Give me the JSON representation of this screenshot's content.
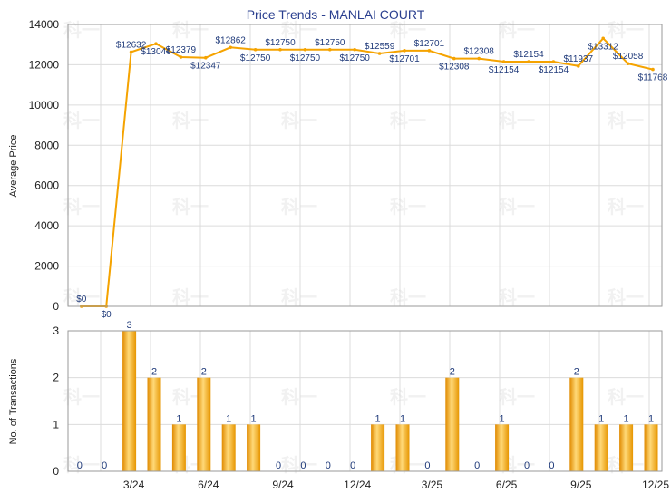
{
  "chart_data": {
    "type": "line",
    "title": "Price Trends - MANLAI COURT",
    "watermark_text": "科一",
    "colors": {
      "line": "#f5a300",
      "bar": "#f0a500",
      "grid": "#dcdcdc",
      "title": "#2a3f8f",
      "labels": "#1f3a7a"
    },
    "x_labels": [
      "3/24",
      "6/24",
      "9/24",
      "12/24",
      "3/25",
      "6/25",
      "9/25",
      "12/25"
    ],
    "x_label_indices": [
      2,
      5,
      8,
      11,
      14,
      17,
      20,
      23
    ],
    "months": 24,
    "price": {
      "type": "line",
      "ylabel": "Average Price",
      "ylim": [
        0,
        14000
      ],
      "yticks": [
        0,
        2000,
        4000,
        6000,
        8000,
        10000,
        12000,
        14000
      ],
      "values": [
        0,
        0,
        12632,
        13046,
        12379,
        12347,
        12862,
        12750,
        12750,
        12750,
        12750,
        12750,
        12559,
        12701,
        12701,
        12308,
        12308,
        12154,
        12154,
        12154,
        11937,
        13312,
        12058,
        11768
      ],
      "labels": [
        "$0",
        "$0",
        "$12632",
        "$13046",
        "$12379",
        "$12347",
        "$12862",
        "$12750",
        "$12750",
        "$12750",
        "$12750",
        "$12750",
        "$12559",
        "$12701",
        "$12701",
        "$12308",
        "$12308",
        "$12154",
        "$12154",
        "$12154",
        "$11937",
        "$13312",
        "$12058",
        "$11768"
      ]
    },
    "transactions": {
      "type": "bar",
      "ylabel": "No. of Transactions",
      "ylim": [
        0,
        3
      ],
      "yticks": [
        0,
        1,
        2,
        3
      ],
      "values": [
        0,
        0,
        3,
        2,
        1,
        2,
        1,
        1,
        0,
        0,
        0,
        0,
        1,
        1,
        0,
        2,
        0,
        1,
        0,
        0,
        2,
        1,
        1,
        1
      ]
    }
  }
}
